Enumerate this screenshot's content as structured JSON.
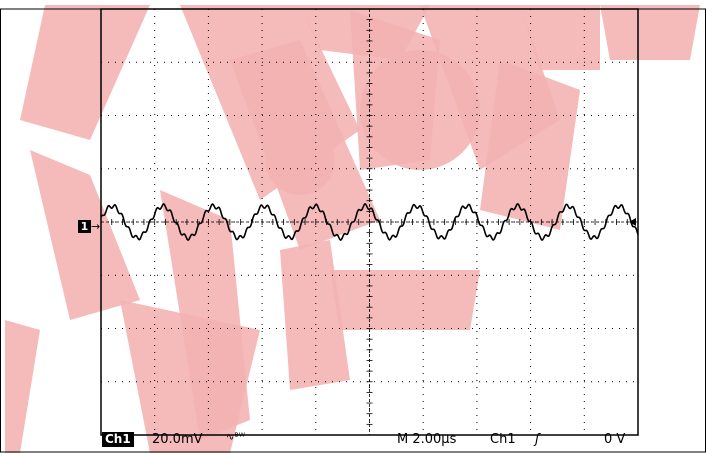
{
  "chart_data": {
    "type": "line",
    "title": "",
    "xlabel": "",
    "ylabel": "",
    "x_divisions": 10,
    "y_divisions": 8,
    "xlim": [
      0,
      10
    ],
    "ylim": [
      -4,
      4
    ],
    "signal": {
      "kind": "sine",
      "cycles": 10.6,
      "amplitude_div": 0.3,
      "phase_deg": 10
    },
    "series": [
      {
        "name": "Ch1",
        "color": "#000000"
      }
    ]
  },
  "readout": {
    "channel": "Ch1",
    "volts_per_div": "20.0mV",
    "bw_symbol": "∿ᴮᵂ",
    "timebase": "M 2.00µs",
    "trigger_source": "Ch1",
    "trigger_slope": "ʃ",
    "trigger_level": "0 V"
  },
  "marker": {
    "label": "1",
    "arrow": "→"
  },
  "watermark": {
    "color": "#f4b3b3"
  }
}
